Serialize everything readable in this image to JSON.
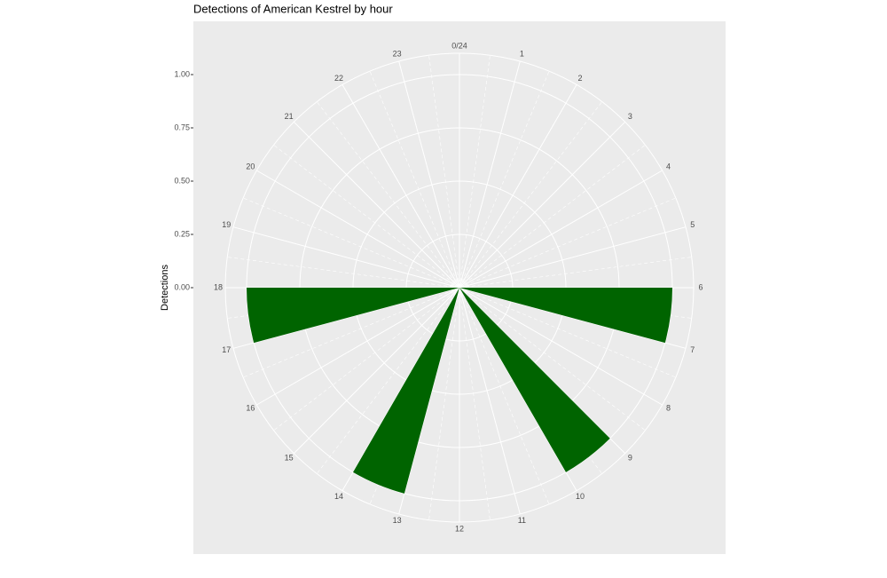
{
  "chart_data": {
    "type": "polar-bar",
    "title": "Detections of American Kestrel by hour",
    "y_label": "Detections",
    "x": [
      6,
      9,
      13,
      17
    ],
    "values": [
      1,
      1,
      1,
      1
    ],
    "color": "#006400",
    "xlim": [
      0,
      24
    ],
    "xticks": [
      {
        "value": 0,
        "label": "0/24"
      },
      1,
      2,
      3,
      4,
      5,
      6,
      7,
      8,
      9,
      10,
      11,
      12,
      13,
      14,
      15,
      16,
      17,
      18,
      19,
      20,
      21,
      22,
      23
    ],
    "ylim": [
      0,
      1.125
    ],
    "yticks": [
      {
        "value": 0,
        "label": "0.00"
      },
      {
        "value": 0.25,
        "label": "0.25"
      },
      {
        "value": 0.5,
        "label": "0.50"
      },
      {
        "value": 0.75,
        "label": "0.75"
      },
      {
        "value": 1,
        "label": "1.00"
      }
    ],
    "grid": true
  }
}
